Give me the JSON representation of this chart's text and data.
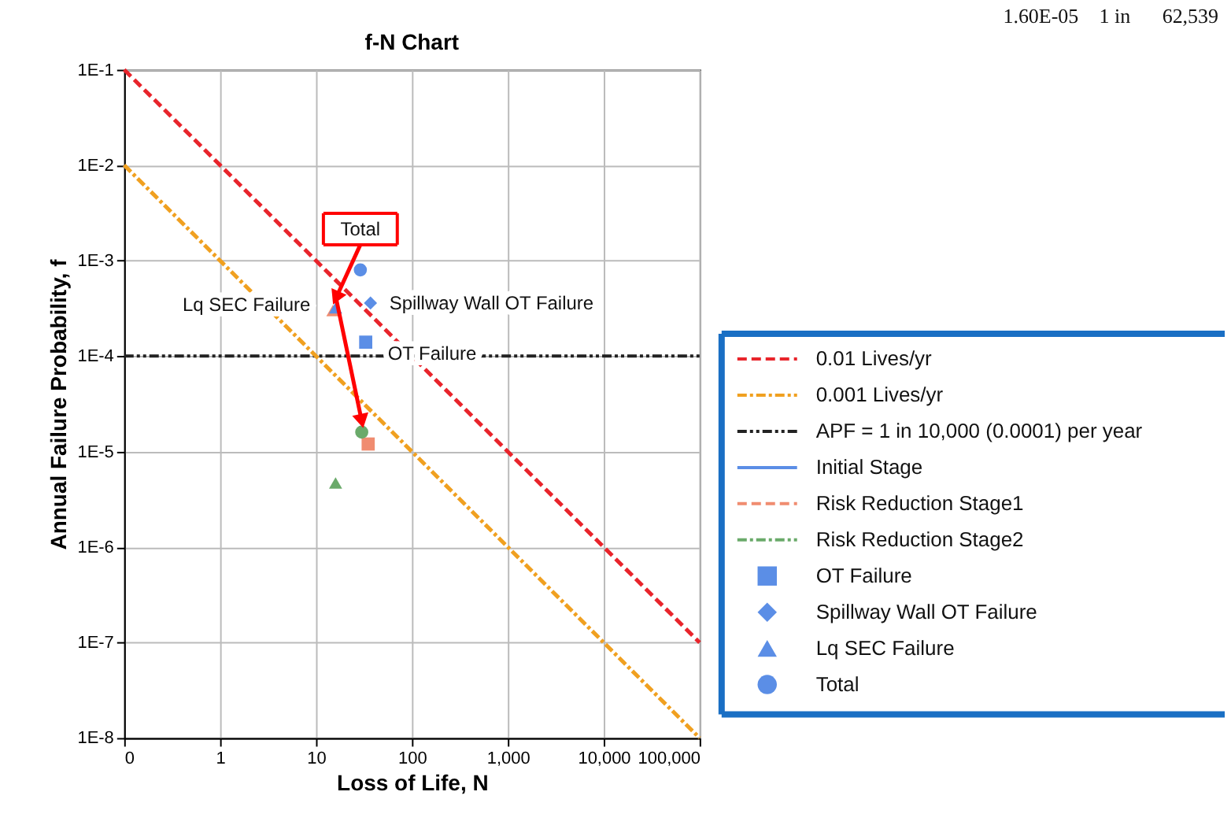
{
  "chart_data": {
    "type": "scatter",
    "title": "f-N Chart",
    "xlabel": "Loss of Life, N",
    "ylabel": "Annual Failure Probability, f",
    "log": "xy",
    "grid": true,
    "legend": "right",
    "xlim": [
      0.1,
      100000
    ],
    "xticks": [
      {
        "value": 0.1,
        "label": "0"
      },
      1,
      10,
      100,
      {
        "value": 1000,
        "label": "1,000"
      },
      {
        "value": 10000,
        "label": "10,000"
      },
      {
        "value": 100000,
        "label": "100,000"
      }
    ],
    "ylim": [
      1e-08,
      0.1
    ],
    "yticks": [
      {
        "value": 1e-08,
        "label": "1E-8"
      },
      {
        "value": 1e-07,
        "label": "1E-7"
      },
      {
        "value": 1e-06,
        "label": "1E-6"
      },
      {
        "value": 1e-05,
        "label": "1E-5"
      },
      {
        "value": 0.0001,
        "label": "1E-4"
      },
      {
        "value": 0.001,
        "label": "1E-3"
      },
      {
        "value": 0.01,
        "label": "1E-2"
      },
      {
        "value": 0.1,
        "label": "1E-1"
      }
    ],
    "series": [
      {
        "name": "0.01 Lives/yr",
        "type": "line",
        "color": "#e8242b",
        "line_style": "dashed",
        "x": [
          0.1,
          100000
        ],
        "values": [
          0.1,
          1e-07
        ]
      },
      {
        "name": "0.001 Lives/yr",
        "type": "line",
        "color": "#f0a020",
        "line_style": "dashdot",
        "x": [
          0.1,
          100000
        ],
        "values": [
          0.01,
          1e-08
        ]
      },
      {
        "name": "Initial Stage",
        "type": "line",
        "color": "#5b8ee6",
        "line_style": "solid"
      },
      {
        "name": "Risk Reduction Stage1",
        "type": "line",
        "color": "#f08c70",
        "line_style": "dashed"
      },
      {
        "name": "Risk Reduction Stage2",
        "type": "line",
        "color": "#6aaa6a",
        "line_style": "dashdot"
      },
      {
        "type": "scatter",
        "marker": "triangle",
        "color": "#f08c70",
        "x": [
          15
        ],
        "values": [
          0.0003
        ]
      },
      {
        "name": "OT Failure",
        "type": "scatter",
        "marker": "square",
        "color": "#5b8ee6",
        "x": [
          33
        ],
        "values": [
          0.00014
        ]
      },
      {
        "name": "Spillway Wall OT Failure",
        "type": "scatter",
        "marker": "diamond",
        "color": "#5b8ee6",
        "x": [
          37
        ],
        "values": [
          0.00036
        ]
      },
      {
        "name": "Lq SEC Failure",
        "type": "scatter",
        "marker": "triangle",
        "color": "#5b8ee6",
        "x": [
          16
        ],
        "values": [
          0.00032
        ]
      },
      {
        "name": "Total",
        "type": "scatter",
        "marker": "circle",
        "color": "#5b8ee6",
        "x": [
          29
        ],
        "values": [
          0.0008
        ]
      },
      {
        "type": "scatter",
        "marker": "square",
        "color": "#f08c70",
        "x": [
          35
        ],
        "values": [
          1.2e-05
        ]
      },
      {
        "type": "scatter",
        "marker": "circle",
        "color": "#6aaa6a",
        "x": [
          30
        ],
        "values": [
          1.6e-05
        ]
      },
      {
        "type": "scatter",
        "marker": "triangle",
        "color": "#6aaa6a",
        "x": [
          16
        ],
        "values": [
          4.7e-06
        ]
      }
    ],
    "ref_lines": [
      {
        "axis": "y",
        "value": 0.0001,
        "label": "APF = 1 in 10,000 (0.0001) per year",
        "color": "#222222",
        "line_style": "dashdotdot"
      }
    ],
    "annotations": [
      {
        "text": "Total",
        "x": 29,
        "y": 0.0008
      },
      {
        "text": "Lq SEC Failure",
        "x": 16,
        "y": 0.00032
      },
      {
        "text": "Spillway Wall OT Failure",
        "x": 37,
        "y": 0.00036
      },
      {
        "text": "OT Failure",
        "x": 33,
        "y": 0.00014
      },
      "1.60E-05",
      "1 in",
      "62,539"
    ]
  }
}
